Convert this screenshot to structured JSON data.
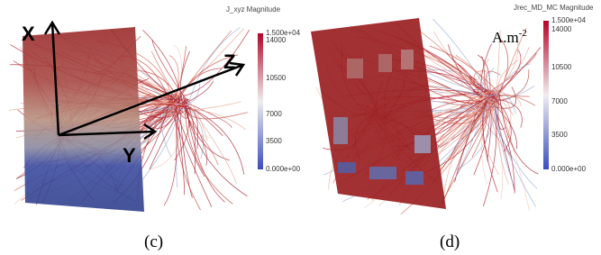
{
  "panels": [
    {
      "caption": "(c)",
      "colorbar": {
        "title": "J_xyz Magnitude",
        "ticks": [
          "1.500e+04",
          "14000",
          "10500",
          "7000",
          "3500",
          "0.000e+00"
        ]
      },
      "axes": {
        "x": "X",
        "y": "Y",
        "z": "Z"
      }
    },
    {
      "caption": "(d)",
      "colorbar": {
        "title": "Jrec_MD_MC Magnitude",
        "ticks": [
          "1.500e+04",
          "14000",
          "10500",
          "7000",
          "3500",
          "0.000e+00"
        ]
      },
      "unit": {
        "base": "A.m",
        "exponent": "-2"
      }
    }
  ]
}
